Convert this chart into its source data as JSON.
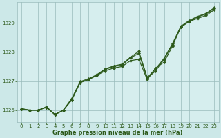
{
  "background_color": "#cce8e8",
  "plot_bg_color": "#d6eeee",
  "grid_color": "#99bbbb",
  "line_color": "#2d5a1b",
  "marker_color": "#2d5a1b",
  "xlabel": "Graphe pression niveau de la mer (hPa)",
  "xlim_min": -0.5,
  "xlim_max": 23.5,
  "ylim_min": 1025.6,
  "ylim_max": 1029.7,
  "yticks": [
    1026,
    1027,
    1028,
    1029
  ],
  "xticks": [
    0,
    1,
    2,
    3,
    4,
    5,
    6,
    7,
    8,
    9,
    10,
    11,
    12,
    13,
    14,
    15,
    16,
    17,
    18,
    19,
    20,
    21,
    22,
    23
  ],
  "series1_x": [
    0,
    1,
    2,
    3,
    4,
    5,
    6,
    7,
    8,
    9,
    10,
    11,
    12,
    13,
    14,
    15,
    16,
    17,
    18,
    19,
    20,
    21,
    22,
    23
  ],
  "series1_y": [
    1026.05,
    1026.0,
    1026.0,
    1026.1,
    1025.85,
    1026.0,
    1026.35,
    1026.95,
    1027.05,
    1027.2,
    1027.35,
    1027.45,
    1027.5,
    1027.7,
    1027.75,
    1027.05,
    1027.45,
    1027.65,
    1028.2,
    1028.85,
    1029.05,
    1029.15,
    1029.25,
    1029.45
  ],
  "series2_x": [
    0,
    1,
    2,
    3,
    4,
    5,
    6,
    7,
    8,
    9,
    10,
    11,
    12,
    13,
    14,
    15,
    16,
    17,
    18,
    19,
    20,
    21,
    22,
    23
  ],
  "series2_y": [
    1026.05,
    1026.0,
    1026.0,
    1026.1,
    1025.85,
    1026.0,
    1026.35,
    1026.95,
    1027.05,
    1027.2,
    1027.4,
    1027.5,
    1027.55,
    1027.8,
    1027.95,
    1027.1,
    1027.35,
    1027.75,
    1028.25,
    1028.85,
    1029.05,
    1029.2,
    1029.3,
    1029.5
  ],
  "series3_x": [
    0,
    1,
    2,
    3,
    4,
    5,
    6,
    7,
    8,
    9,
    10,
    11,
    12,
    13,
    14,
    15,
    16,
    17,
    18,
    19,
    20,
    21,
    22,
    23
  ],
  "series3_y": [
    1026.05,
    1026.0,
    1026.0,
    1026.12,
    1025.85,
    1026.0,
    1026.4,
    1026.98,
    1027.08,
    1027.22,
    1027.42,
    1027.52,
    1027.58,
    1027.82,
    1028.02,
    1027.12,
    1027.42,
    1027.78,
    1028.28,
    1028.88,
    1029.08,
    1029.22,
    1029.32,
    1029.52
  ],
  "tick_fontsize": 5,
  "xlabel_fontsize": 6,
  "linewidth": 0.9,
  "markersize": 2.2
}
